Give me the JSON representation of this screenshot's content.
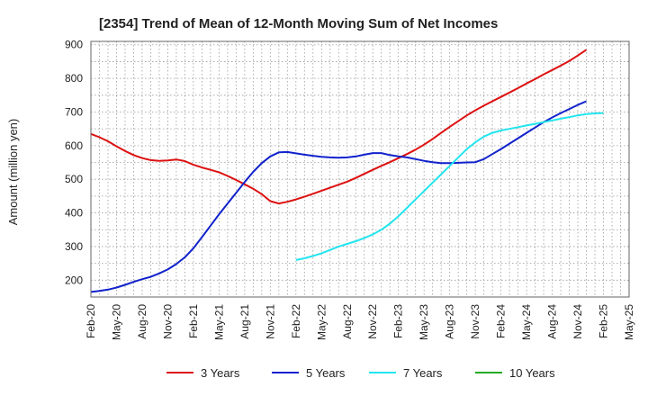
{
  "chart_data": {
    "type": "line",
    "title": "[2354]  Trend of Mean of 12-Month Moving Sum of Net Incomes",
    "ylabel": "Amount (million yen)",
    "xlabel": "",
    "x_ticks": [
      "Feb-20",
      "May-20",
      "Aug-20",
      "Nov-20",
      "Feb-21",
      "May-21",
      "Aug-21",
      "Nov-21",
      "Feb-22",
      "May-22",
      "Aug-22",
      "Nov-22",
      "Feb-23",
      "May-23",
      "Aug-23",
      "Nov-23",
      "Feb-24",
      "May-24",
      "Aug-24",
      "Nov-24",
      "Feb-25",
      "May-25"
    ],
    "y_ticks": [
      200,
      300,
      400,
      500,
      600,
      700,
      800,
      900
    ],
    "ylim": [
      150,
      910
    ],
    "grid": true,
    "legend_position": "bottom",
    "series": [
      {
        "name": "3 Years",
        "color": "#dd1111",
        "x": [
          "2020-02",
          "2020-03",
          "2020-04",
          "2020-05",
          "2020-06",
          "2020-07",
          "2020-08",
          "2020-09",
          "2020-10",
          "2020-11",
          "2020-12",
          "2021-01",
          "2021-02",
          "2021-03",
          "2021-04",
          "2021-05",
          "2021-06",
          "2021-07",
          "2021-08",
          "2021-09",
          "2021-10",
          "2021-11",
          "2021-12",
          "2022-01",
          "2022-02",
          "2022-03",
          "2022-04",
          "2022-05",
          "2022-06",
          "2022-07",
          "2022-08",
          "2022-09",
          "2022-10",
          "2022-11",
          "2022-12",
          "2023-01",
          "2023-02",
          "2023-03",
          "2023-04",
          "2023-05",
          "2023-06",
          "2023-07",
          "2023-08",
          "2023-09",
          "2023-10",
          "2023-11",
          "2023-12",
          "2024-01",
          "2024-02",
          "2024-03",
          "2024-04",
          "2024-05",
          "2024-06",
          "2024-07",
          "2024-08",
          "2024-09",
          "2024-10",
          "2024-11",
          "2024-12",
          "2025-01",
          "2025-02"
        ],
        "values": [
          635,
          625,
          613,
          598,
          584,
          572,
          563,
          557,
          555,
          556,
          559,
          554,
          543,
          535,
          528,
          521,
          510,
          498,
          485,
          472,
          456,
          435,
          428,
          433,
          440,
          448,
          457,
          466,
          475,
          484,
          493,
          504,
          516,
          528,
          540,
          551,
          563,
          575,
          588,
          603,
          620,
          638,
          656,
          673,
          690,
          705,
          719,
          732,
          745,
          758,
          771,
          785,
          798,
          812,
          825,
          838,
          852,
          868,
          885,
          null,
          null
        ]
      },
      {
        "name": "5 Years",
        "color": "#1122cc",
        "x": [
          "2020-02",
          "2020-03",
          "2020-04",
          "2020-05",
          "2020-06",
          "2020-07",
          "2020-08",
          "2020-09",
          "2020-10",
          "2020-11",
          "2020-12",
          "2021-01",
          "2021-02",
          "2021-03",
          "2021-04",
          "2021-05",
          "2021-06",
          "2021-07",
          "2021-08",
          "2021-09",
          "2021-10",
          "2021-11",
          "2021-12",
          "2022-01",
          "2022-02",
          "2022-03",
          "2022-04",
          "2022-05",
          "2022-06",
          "2022-07",
          "2022-08",
          "2022-09",
          "2022-10",
          "2022-11",
          "2022-12",
          "2023-01",
          "2023-02",
          "2023-03",
          "2023-04",
          "2023-05",
          "2023-06",
          "2023-07",
          "2023-08",
          "2023-09",
          "2023-10",
          "2023-11",
          "2023-12",
          "2024-01",
          "2024-02",
          "2024-03",
          "2024-04",
          "2024-05",
          "2024-06",
          "2024-07",
          "2024-08",
          "2024-09",
          "2024-10",
          "2024-11",
          "2024-12",
          "2025-01",
          "2025-02"
        ],
        "values": [
          165,
          168,
          172,
          178,
          186,
          195,
          203,
          210,
          220,
          232,
          248,
          268,
          295,
          328,
          362,
          396,
          428,
          460,
          492,
          522,
          548,
          568,
          580,
          581,
          577,
          573,
          570,
          567,
          565,
          564,
          565,
          568,
          573,
          578,
          578,
          572,
          568,
          565,
          560,
          555,
          551,
          548,
          548,
          549,
          550,
          551,
          560,
          575,
          590,
          606,
          622,
          638,
          654,
          670,
          684,
          697,
          709,
          721,
          732,
          null,
          null
        ]
      },
      {
        "name": "7 Years",
        "color": "#22e5ee",
        "x": [
          "2022-02",
          "2022-03",
          "2022-04",
          "2022-05",
          "2022-06",
          "2022-07",
          "2022-08",
          "2022-09",
          "2022-10",
          "2022-11",
          "2022-12",
          "2023-01",
          "2023-02",
          "2023-03",
          "2023-04",
          "2023-05",
          "2023-06",
          "2023-07",
          "2023-08",
          "2023-09",
          "2023-10",
          "2023-11",
          "2023-12",
          "2024-01",
          "2024-02",
          "2024-03",
          "2024-04",
          "2024-05",
          "2024-06",
          "2024-07",
          "2024-08",
          "2024-09",
          "2024-10",
          "2024-11",
          "2024-12",
          "2025-01",
          "2025-02"
        ],
        "values": [
          260,
          265,
          272,
          280,
          290,
          300,
          308,
          316,
          325,
          336,
          350,
          368,
          390,
          415,
          440,
          465,
          490,
          515,
          540,
          565,
          590,
          610,
          627,
          638,
          645,
          650,
          655,
          660,
          665,
          670,
          675,
          680,
          685,
          690,
          694,
          696,
          697
        ]
      },
      {
        "name": "10 Years",
        "color": "#22aa22",
        "x": [],
        "values": []
      }
    ]
  }
}
